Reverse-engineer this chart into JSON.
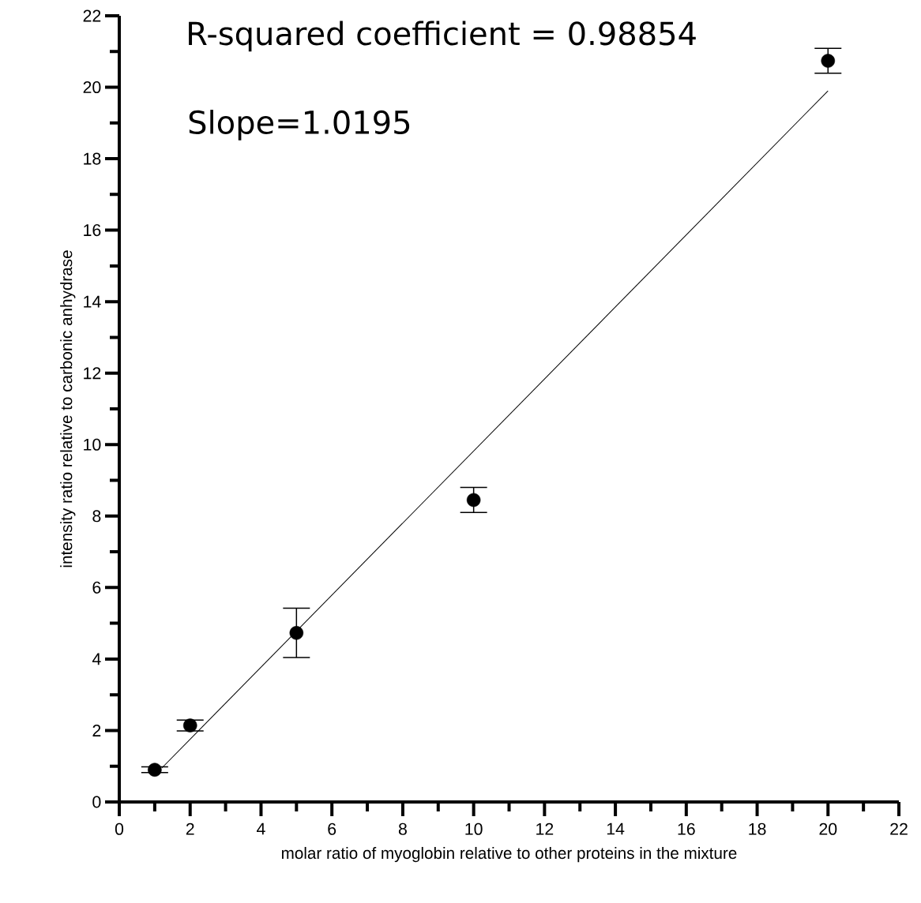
{
  "chart_data": {
    "type": "scatter",
    "xlabel": "molar ratio of myoglobin relative to other proteins in the mixture",
    "ylabel": "intensity ratio relative to carbonic anhydrase",
    "annotations": [
      "R-squared coefficient = 0.98854",
      "Slope=1.0195"
    ],
    "xlim": [
      0,
      22
    ],
    "ylim": [
      0,
      22
    ],
    "xticks": [
      0,
      {
        "value": 1,
        "label": null
      },
      2,
      {
        "value": 3,
        "label": null
      },
      4,
      {
        "value": 5,
        "label": null
      },
      6,
      {
        "value": 7,
        "label": null
      },
      8,
      {
        "value": 9,
        "label": null
      },
      10,
      {
        "value": 11,
        "label": null
      },
      12,
      {
        "value": 13,
        "label": null
      },
      14,
      {
        "value": 15,
        "label": null
      },
      16,
      {
        "value": 17,
        "label": null
      },
      18,
      {
        "value": 19,
        "label": null
      },
      20,
      {
        "value": 21,
        "label": null
      },
      22
    ],
    "yticks": [
      0,
      {
        "value": 1,
        "label": null
      },
      2,
      {
        "value": 3,
        "label": null
      },
      4,
      {
        "value": 5,
        "label": null
      },
      6,
      {
        "value": 7,
        "label": null
      },
      8,
      {
        "value": 9,
        "label": null
      },
      10,
      {
        "value": 11,
        "label": null
      },
      12,
      {
        "value": 13,
        "label": null
      },
      14,
      {
        "value": 15,
        "label": null
      },
      16,
      {
        "value": 17,
        "label": null
      },
      18,
      {
        "value": 19,
        "label": null
      },
      20,
      {
        "value": 21,
        "label": null
      },
      22
    ],
    "series": [
      {
        "marker": "circle",
        "color": "#000000",
        "x": [
          1,
          2,
          5,
          10,
          20
        ],
        "values": [
          0.9,
          2.14,
          4.73,
          8.45,
          20.74
        ],
        "errors": [
          0.08,
          0.15,
          0.69,
          0.35,
          0.35
        ]
      },
      {
        "type": "line",
        "marker": "none",
        "color": "#000000",
        "x": [
          1.2,
          20
        ],
        "values": [
          0.95,
          19.9
        ]
      }
    ]
  }
}
